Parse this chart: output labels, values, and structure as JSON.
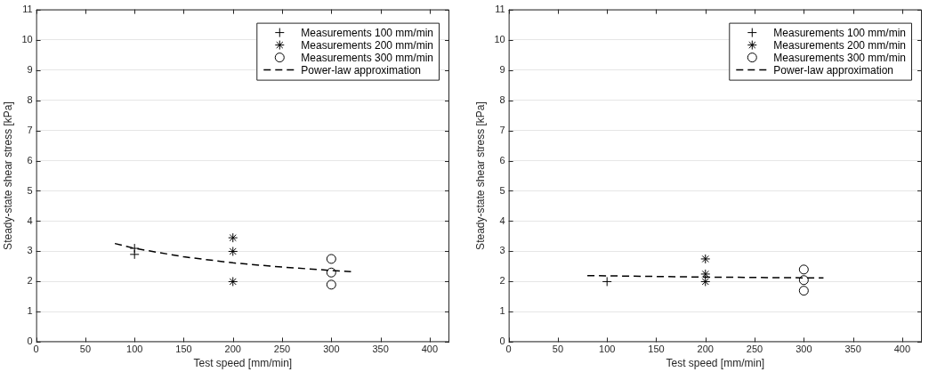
{
  "chart_data": [
    {
      "type": "scatter",
      "xlabel": "Test speed [mm/min]",
      "ylabel": "Steady-state shear stress [kPa]",
      "xlim": [
        0,
        420
      ],
      "xticks": [
        0,
        50,
        100,
        150,
        200,
        250,
        300,
        350,
        400
      ],
      "ylim": [
        0,
        11
      ],
      "yticks": [
        0,
        1,
        2,
        3,
        4,
        5,
        6,
        7,
        8,
        9,
        10,
        11
      ],
      "grid": "y",
      "legend": "top right",
      "series": [
        {
          "name": "Measurements 100 mm/min",
          "color": "#000000",
          "marker": "cross",
          "x": [
            100,
            100
          ],
          "values": [
            3.1,
            2.9
          ]
        },
        {
          "name": "Measurements 200 mm/min",
          "color": "#000000",
          "x": [
            200,
            200,
            200
          ],
          "values": [
            3.45,
            3.0,
            2.0
          ]
        },
        {
          "name": "Measurements 300 mm/min",
          "color": "#000000",
          "marker": "circle",
          "x": [
            300,
            300,
            300
          ],
          "values": [
            2.75,
            2.3,
            1.9
          ]
        },
        {
          "name": "Power-law approximation",
          "type": "line",
          "color": "#000000",
          "marker": "none",
          "line_style": "dashed",
          "x": [
            80,
            100,
            150,
            200,
            250,
            300,
            320
          ],
          "values": [
            3.26,
            3.1,
            2.82,
            2.62,
            2.48,
            2.37,
            2.33
          ]
        }
      ]
    },
    {
      "type": "scatter",
      "xlabel": "Test speed [mm/min]",
      "ylabel": "Steady-state shear stress [kPa]",
      "xlim": [
        0,
        420
      ],
      "xticks": [
        0,
        50,
        100,
        150,
        200,
        250,
        300,
        350,
        400
      ],
      "ylim": [
        0,
        11
      ],
      "yticks": [
        0,
        1,
        2,
        3,
        4,
        5,
        6,
        7,
        8,
        9,
        10,
        11
      ],
      "grid": "y",
      "legend": "top right",
      "series": [
        {
          "name": "Measurements 100 mm/min",
          "color": "#000000",
          "marker": "cross",
          "x": [
            100
          ],
          "values": [
            2.0
          ]
        },
        {
          "name": "Measurements 200 mm/min",
          "color": "#000000",
          "x": [
            200,
            200,
            200
          ],
          "values": [
            2.75,
            2.25,
            2.0
          ]
        },
        {
          "name": "Measurements 300 mm/min",
          "color": "#000000",
          "marker": "circle",
          "x": [
            300,
            300,
            300
          ],
          "values": [
            2.4,
            2.05,
            1.7
          ]
        },
        {
          "name": "Power-law approximation",
          "type": "line",
          "color": "#000000",
          "marker": "none",
          "line_style": "dashed",
          "x": [
            80,
            200,
            320
          ],
          "values": [
            2.2,
            2.15,
            2.12
          ]
        }
      ]
    }
  ]
}
